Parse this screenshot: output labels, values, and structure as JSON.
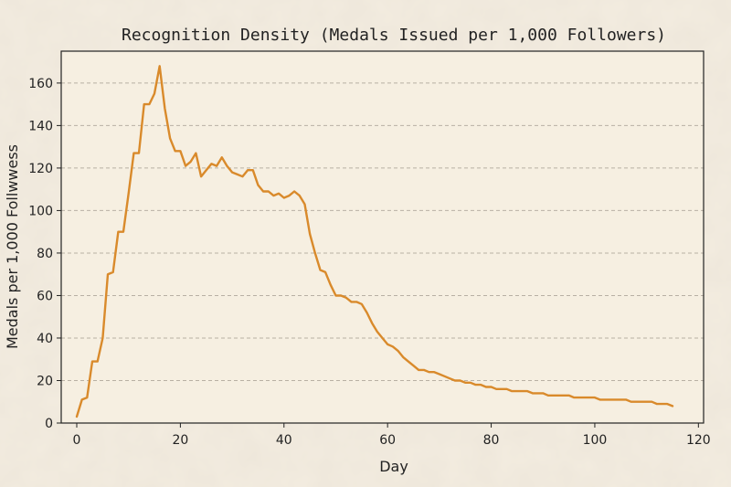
{
  "colors": {
    "background": "#f3ece0",
    "plot_background": "#f7f0e2",
    "series": "#d98a2b"
  },
  "chart_data": {
    "type": "line",
    "title": "Recognition Density (Medals Issued per 1,000 Followers)",
    "xlabel": "Day",
    "ylabel": "Medals per 1,000  Follwwess",
    "xlim": [
      -3,
      121
    ],
    "ylim": [
      0,
      175
    ],
    "xticks": [
      0,
      20,
      40,
      60,
      80,
      100,
      120
    ],
    "yticks": [
      0,
      20,
      40,
      60,
      80,
      100,
      120,
      140,
      160
    ],
    "grid": "horizontal",
    "series": [
      {
        "name": "Medals per 1,000 Followers",
        "x": [
          0,
          1,
          2,
          3,
          4,
          5,
          6,
          7,
          8,
          9,
          10,
          11,
          12,
          13,
          14,
          15,
          16,
          17,
          18,
          19,
          20,
          21,
          22,
          23,
          24,
          25,
          26,
          27,
          28,
          29,
          30,
          31,
          32,
          33,
          34,
          35,
          36,
          37,
          38,
          39,
          40,
          41,
          42,
          43,
          44,
          45,
          46,
          47,
          48,
          49,
          50,
          51,
          52,
          53,
          54,
          55,
          56,
          57,
          58,
          59,
          60,
          61,
          62,
          63,
          64,
          65,
          66,
          67,
          68,
          69,
          70,
          71,
          72,
          73,
          74,
          75,
          76,
          77,
          78,
          79,
          80,
          81,
          82,
          83,
          84,
          85,
          86,
          87,
          88,
          89,
          90,
          91,
          92,
          93,
          94,
          95,
          96,
          97,
          98,
          99,
          100,
          101,
          102,
          103,
          104,
          105,
          106,
          107,
          108,
          109,
          110,
          111,
          112,
          113,
          114,
          115
        ],
        "y": [
          3,
          11,
          12,
          29,
          29,
          40,
          70,
          71,
          90,
          90,
          108,
          127,
          127,
          150,
          150,
          155,
          168,
          148,
          134,
          128,
          128,
          121,
          123,
          127,
          116,
          119,
          122,
          121,
          125,
          121,
          118,
          117,
          116,
          119,
          119,
          112,
          109,
          109,
          107,
          108,
          106,
          107,
          109,
          107,
          103,
          89,
          80,
          72,
          71,
          65,
          60,
          60,
          59,
          57,
          57,
          56,
          52,
          47,
          43,
          40,
          37,
          36,
          34,
          31,
          29,
          27,
          25,
          25,
          24,
          24,
          23,
          22,
          21,
          20,
          20,
          19,
          19,
          18,
          18,
          17,
          17,
          16,
          16,
          16,
          15,
          15,
          15,
          15,
          14,
          14,
          14,
          13,
          13,
          13,
          13,
          13,
          12,
          12,
          12,
          12,
          12,
          11,
          11,
          11,
          11,
          11,
          11,
          10,
          10,
          10,
          10,
          10,
          9,
          9,
          9,
          8
        ]
      }
    ]
  }
}
